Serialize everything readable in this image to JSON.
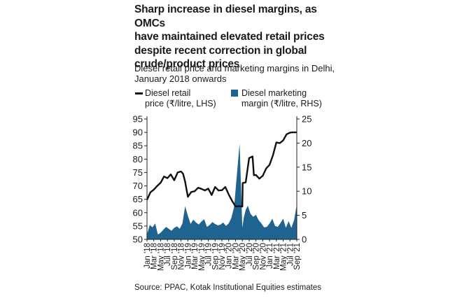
{
  "title_lines": [
    "Sharp increase in diesel margins, as OMCs",
    "have maintained elevated retail prices",
    "despite recent correction in global",
    "crude/product prices"
  ],
  "subtitle_lines": [
    "Diesel retail price and marketing margins in Delhi,",
    "January 2018 onwards"
  ],
  "source": "Source: PPAC, Kotak Institutional Equities estimates",
  "chart_data": {
    "type": "line+area",
    "title": "Sharp increase in diesel margins, as OMCs have maintained elevated retail prices despite recent correction in global crude/product prices",
    "subtitle": "Diesel retail price and marketing margins in Delhi, January 2018 onwards",
    "categories": [
      "Jan '18",
      "Mar '18",
      "May '18",
      "Jul '18",
      "Sep '18",
      "Nov '18",
      "Jan '19",
      "Mar '19",
      "May '19",
      "Jul '19",
      "Sep '19",
      "Nov '19",
      "Jan '20",
      "Mar '20",
      "May '20",
      "Jul '20",
      "Sep '20",
      "Nov '20",
      "Jan '21",
      "Mar '21",
      "May '21",
      "Jul '21",
      "Sep '21"
    ],
    "series": [
      {
        "name": "Diesel retail price (₹/litre, LHS)",
        "legend_lines": [
          "Diesel retail",
          "price (₹/litre, LHS)"
        ],
        "axis": "left",
        "kind": "line",
        "color": "#111111",
        "x": [
          0,
          0.5,
          1,
          1.5,
          2,
          2.5,
          3,
          3.5,
          4,
          4.5,
          5,
          5.3,
          5.6,
          6,
          6.5,
          7,
          7.5,
          8,
          8.5,
          9,
          9.5,
          10,
          10.5,
          11,
          11.5,
          12,
          12.5,
          13,
          13.5,
          14,
          14.05,
          14.5,
          15,
          15.5,
          15.7,
          16,
          16.5,
          17,
          17.5,
          18,
          18.5,
          19,
          19.5,
          20,
          20.5,
          21,
          21.3,
          22
        ],
        "values": [
          64.8,
          67.6,
          68.6,
          70.0,
          71.2,
          73.5,
          72.9,
          74.3,
          72.1,
          75.0,
          75.4,
          74.5,
          71.5,
          65.9,
          67.7,
          68.0,
          69.3,
          68.9,
          68.3,
          69.0,
          66.6,
          69.6,
          68.3,
          68.4,
          69.6,
          66.8,
          64.4,
          62.3,
          62.4,
          62.3,
          71.1,
          71.3,
          80.4,
          81.0,
          74.0,
          74.1,
          72.7,
          73.8,
          76.5,
          77.9,
          81.5,
          86.2,
          86.0,
          87.0,
          89.3,
          89.9,
          90.0,
          90.0
        ]
      },
      {
        "name": "Diesel marketing margin (₹/litre, RHS)",
        "legend_lines": [
          "Diesel marketing",
          "margin (₹/litre, RHS)"
        ],
        "axis": "right",
        "kind": "area",
        "color": "#1f6391",
        "x": [
          0,
          0.4,
          0.8,
          1.2,
          1.6,
          2,
          2.4,
          2.8,
          3.2,
          3.6,
          4,
          4.4,
          4.8,
          5.2,
          5.6,
          6,
          6.4,
          6.8,
          7.2,
          7.6,
          8,
          8.4,
          8.8,
          9.2,
          9.6,
          10,
          10.4,
          10.8,
          11.2,
          11.6,
          12,
          12.4,
          12.8,
          13.2,
          13.6,
          14,
          14.2,
          14.5,
          14.8,
          15.2,
          15.6,
          16,
          16.4,
          16.8,
          17.2,
          17.6,
          18,
          18.4,
          18.8,
          19.2,
          19.6,
          20,
          20.4,
          20.8,
          21.2,
          21.6,
          22
        ],
        "values": [
          1.0,
          3.0,
          2.5,
          3.3,
          1.0,
          1.4,
          2.0,
          2.6,
          2.2,
          1.8,
          2.4,
          2.7,
          2.2,
          3.3,
          6.9,
          4.9,
          3.2,
          4.1,
          3.5,
          3.1,
          3.7,
          4.2,
          2.6,
          3.0,
          3.6,
          3.2,
          2.9,
          3.1,
          3.5,
          2.8,
          3.3,
          4.5,
          6.8,
          13.4,
          19.9,
          2.4,
          4.4,
          6.1,
          7.0,
          5.3,
          4.7,
          5.1,
          4.0,
          3.3,
          2.5,
          2.6,
          3.3,
          4.3,
          2.8,
          2.6,
          3.4,
          4.3,
          2.4,
          3.8,
          2.4,
          4.0,
          7.2
        ]
      }
    ],
    "y_left": {
      "min": 50,
      "max": 95,
      "ticks": [
        50,
        55,
        60,
        65,
        70,
        75,
        80,
        85,
        90,
        95
      ]
    },
    "y_right": {
      "min": 0,
      "max": 25,
      "ticks": [
        0,
        5,
        10,
        15,
        20,
        25
      ]
    },
    "x_range": [
      0,
      22
    ],
    "grid": false,
    "legend_position": "top"
  }
}
